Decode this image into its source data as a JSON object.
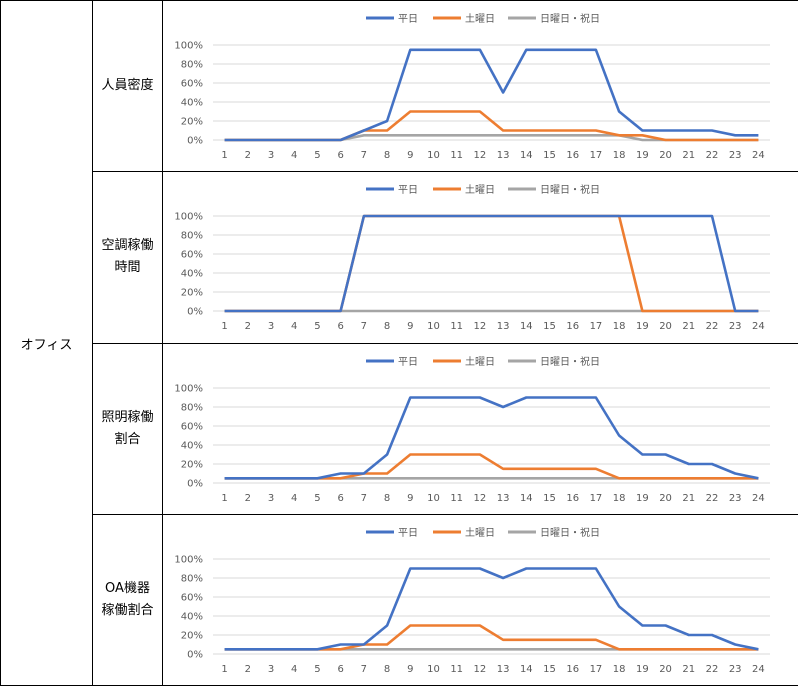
{
  "category": "オフィス",
  "legend": [
    "平日",
    "土曜日",
    "日曜日・祝日"
  ],
  "colors": {
    "weekday": "#4472C4",
    "saturday": "#ED7D31",
    "holiday": "#A5A5A5",
    "grid": "#D9D9D9",
    "text": "#595959"
  },
  "rows": [
    {
      "label_lines": [
        "人員密度"
      ]
    },
    {
      "label_lines": [
        "空調稼働",
        "時間"
      ]
    },
    {
      "label_lines": [
        "照明稼働",
        "割合"
      ]
    },
    {
      "label_lines": [
        "OA機器",
        "稼働割合"
      ]
    }
  ],
  "chart_data": [
    {
      "type": "line",
      "x": [
        1,
        2,
        3,
        4,
        5,
        6,
        7,
        8,
        9,
        10,
        11,
        12,
        13,
        14,
        15,
        16,
        17,
        18,
        19,
        20,
        21,
        22,
        23,
        24
      ],
      "ylim": [
        0,
        100
      ],
      "yticks": [
        "0%",
        "20%",
        "40%",
        "60%",
        "80%",
        "100%"
      ],
      "legend_position": "top",
      "series": [
        {
          "name": "平日",
          "values": [
            0,
            0,
            0,
            0,
            0,
            0,
            10,
            20,
            95,
            95,
            95,
            95,
            50,
            95,
            95,
            95,
            95,
            30,
            10,
            10,
            10,
            10,
            5,
            5
          ]
        },
        {
          "name": "土曜日",
          "values": [
            0,
            0,
            0,
            0,
            0,
            0,
            10,
            10,
            30,
            30,
            30,
            30,
            10,
            10,
            10,
            10,
            10,
            5,
            5,
            0,
            0,
            0,
            0,
            0
          ]
        },
        {
          "name": "日曜日・祝日",
          "values": [
            0,
            0,
            0,
            0,
            0,
            0,
            5,
            5,
            5,
            5,
            5,
            5,
            5,
            5,
            5,
            5,
            5,
            5,
            0,
            0,
            0,
            0,
            0,
            0
          ]
        }
      ]
    },
    {
      "type": "line",
      "x": [
        1,
        2,
        3,
        4,
        5,
        6,
        7,
        8,
        9,
        10,
        11,
        12,
        13,
        14,
        15,
        16,
        17,
        18,
        19,
        20,
        21,
        22,
        23,
        24
      ],
      "ylim": [
        0,
        100
      ],
      "yticks": [
        "0%",
        "20%",
        "40%",
        "60%",
        "80%",
        "100%"
      ],
      "legend_position": "top",
      "series": [
        {
          "name": "平日",
          "values": [
            0,
            0,
            0,
            0,
            0,
            0,
            100,
            100,
            100,
            100,
            100,
            100,
            100,
            100,
            100,
            100,
            100,
            100,
            100,
            100,
            100,
            100,
            0,
            0
          ]
        },
        {
          "name": "土曜日",
          "values": [
            0,
            0,
            0,
            0,
            0,
            0,
            100,
            100,
            100,
            100,
            100,
            100,
            100,
            100,
            100,
            100,
            100,
            100,
            0,
            0,
            0,
            0,
            0,
            0
          ]
        },
        {
          "name": "日曜日・祝日",
          "values": [
            0,
            0,
            0,
            0,
            0,
            0,
            0,
            0,
            0,
            0,
            0,
            0,
            0,
            0,
            0,
            0,
            0,
            0,
            0,
            0,
            0,
            0,
            0,
            0
          ]
        }
      ]
    },
    {
      "type": "line",
      "x": [
        1,
        2,
        3,
        4,
        5,
        6,
        7,
        8,
        9,
        10,
        11,
        12,
        13,
        14,
        15,
        16,
        17,
        18,
        19,
        20,
        21,
        22,
        23,
        24
      ],
      "ylim": [
        0,
        100
      ],
      "yticks": [
        "0%",
        "20%",
        "40%",
        "60%",
        "80%",
        "100%"
      ],
      "legend_position": "top",
      "series": [
        {
          "name": "平日",
          "values": [
            5,
            5,
            5,
            5,
            5,
            10,
            10,
            30,
            90,
            90,
            90,
            90,
            80,
            90,
            90,
            90,
            90,
            50,
            30,
            30,
            20,
            20,
            10,
            5
          ]
        },
        {
          "name": "土曜日",
          "values": [
            5,
            5,
            5,
            5,
            5,
            5,
            10,
            10,
            30,
            30,
            30,
            30,
            15,
            15,
            15,
            15,
            15,
            5,
            5,
            5,
            5,
            5,
            5,
            5
          ]
        },
        {
          "name": "日曜日・祝日",
          "values": [
            5,
            5,
            5,
            5,
            5,
            5,
            5,
            5,
            5,
            5,
            5,
            5,
            5,
            5,
            5,
            5,
            5,
            5,
            5,
            5,
            5,
            5,
            5,
            5
          ]
        }
      ]
    },
    {
      "type": "line",
      "x": [
        1,
        2,
        3,
        4,
        5,
        6,
        7,
        8,
        9,
        10,
        11,
        12,
        13,
        14,
        15,
        16,
        17,
        18,
        19,
        20,
        21,
        22,
        23,
        24
      ],
      "ylim": [
        0,
        100
      ],
      "yticks": [
        "0%",
        "20%",
        "40%",
        "60%",
        "80%",
        "100%"
      ],
      "legend_position": "top",
      "series": [
        {
          "name": "平日",
          "values": [
            5,
            5,
            5,
            5,
            5,
            10,
            10,
            30,
            90,
            90,
            90,
            90,
            80,
            90,
            90,
            90,
            90,
            50,
            30,
            30,
            20,
            20,
            10,
            5
          ]
        },
        {
          "name": "土曜日",
          "values": [
            5,
            5,
            5,
            5,
            5,
            5,
            10,
            10,
            30,
            30,
            30,
            30,
            15,
            15,
            15,
            15,
            15,
            5,
            5,
            5,
            5,
            5,
            5,
            5
          ]
        },
        {
          "name": "日曜日・祝日",
          "values": [
            5,
            5,
            5,
            5,
            5,
            5,
            5,
            5,
            5,
            5,
            5,
            5,
            5,
            5,
            5,
            5,
            5,
            5,
            5,
            5,
            5,
            5,
            5,
            5
          ]
        }
      ]
    }
  ]
}
